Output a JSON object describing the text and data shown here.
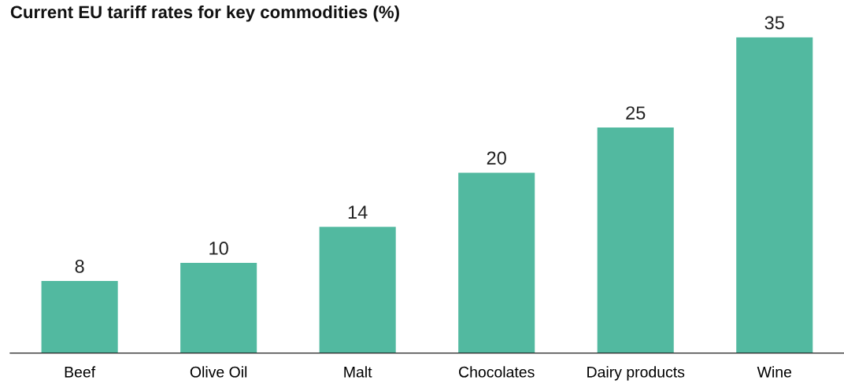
{
  "chart_data": {
    "type": "bar",
    "title": "Current EU tariff rates for key commodities (%)",
    "categories": [
      "Beef",
      "Olive Oil",
      "Malt",
      "Chocolates",
      "Dairy products",
      "Wine"
    ],
    "values": [
      8,
      10,
      14,
      20,
      25,
      35
    ],
    "color": "#52b9a0",
    "data_labels": true,
    "grid": false,
    "legend": false
  }
}
